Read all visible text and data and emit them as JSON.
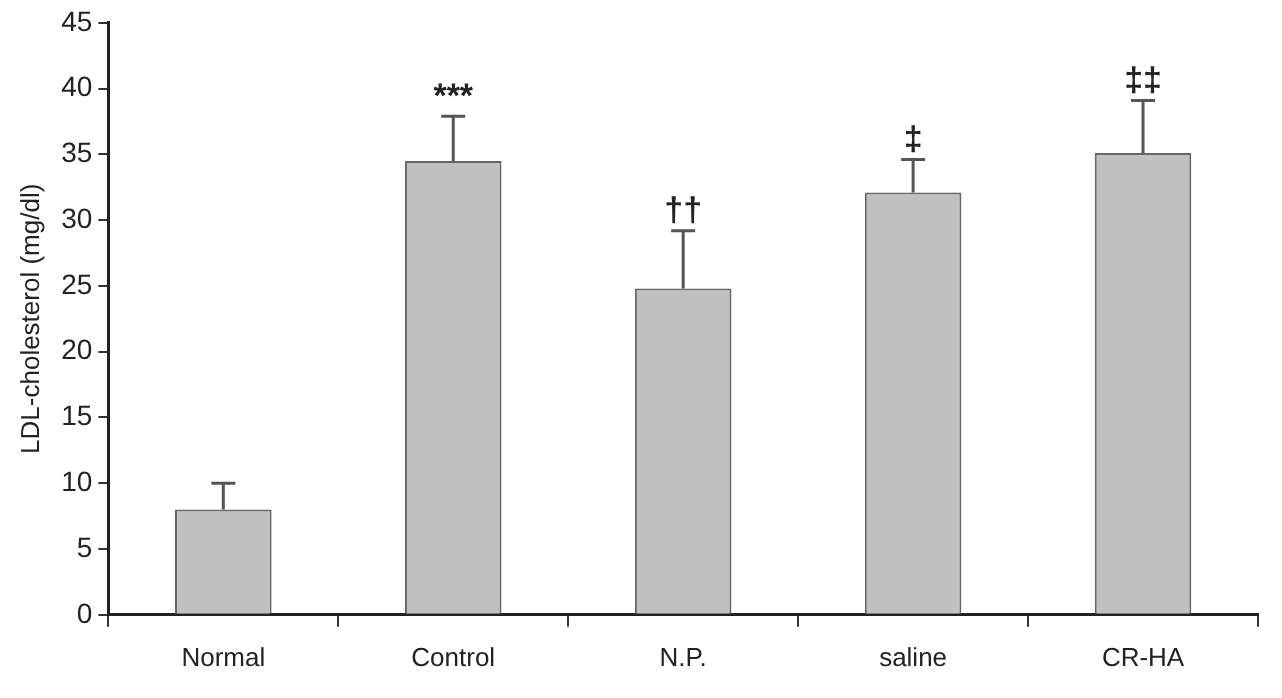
{
  "chart_data": {
    "type": "bar",
    "ylabel": "LDL-cholesterol (mg/dl)",
    "categories": [
      "Normal",
      "Control",
      "N.P.",
      "saline",
      "CR-HA"
    ],
    "values": [
      8,
      34.5,
      24.8,
      32.1,
      35.1
    ],
    "errors": [
      [
        8,
        10
      ],
      [
        34.5,
        37.9
      ],
      [
        24.8,
        29.2
      ],
      [
        32.1,
        34.6
      ],
      [
        35.1,
        39.1
      ]
    ],
    "color": "#c0c0c0",
    "ylim": [
      0,
      45
    ],
    "yticks": [
      0,
      5,
      10,
      15,
      20,
      25,
      30,
      35,
      40,
      45
    ],
    "grid": false,
    "legend": false,
    "annotations": [
      {
        "text": "***",
        "x": "Control",
        "y": 37.9
      },
      {
        "text": "††",
        "x": "N.P.",
        "y": 29.2
      },
      {
        "text": "‡",
        "x": "saline",
        "y": 34.6
      },
      {
        "text": "‡‡",
        "x": "CR-HA",
        "y": 39.1
      }
    ]
  }
}
